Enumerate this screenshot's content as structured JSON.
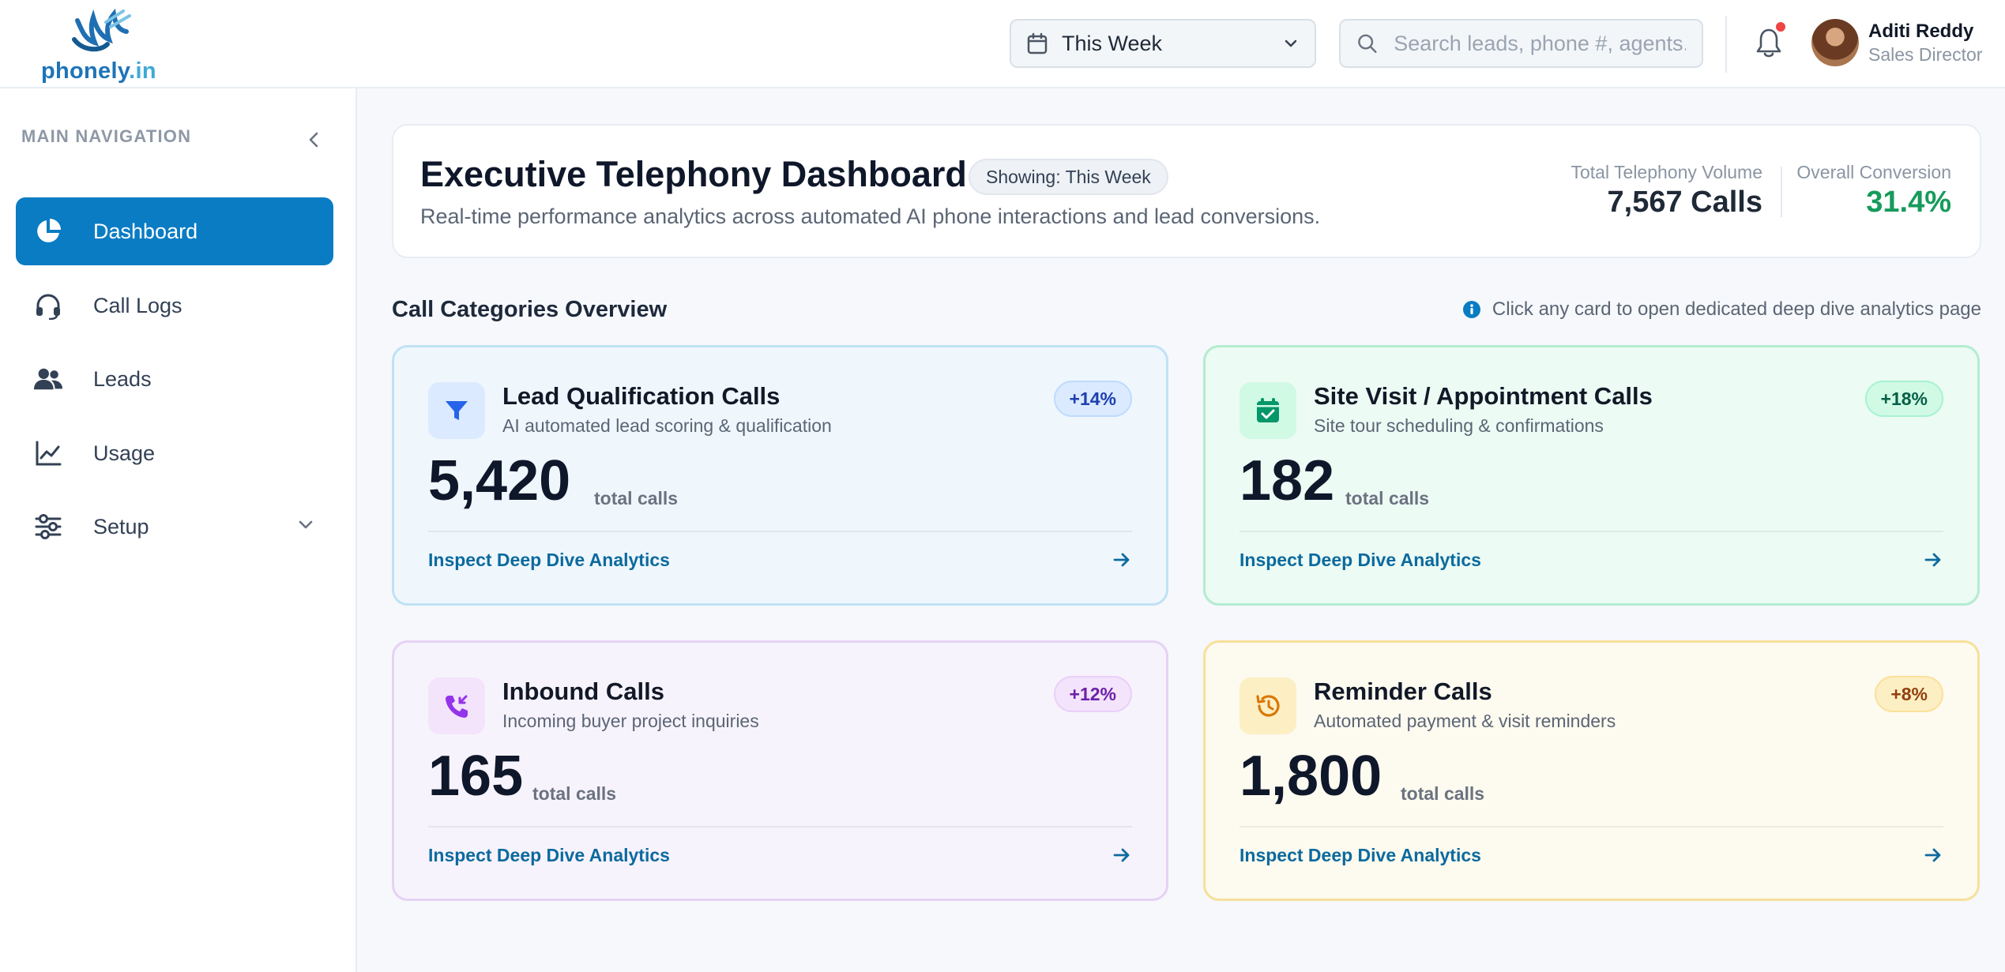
{
  "brand": {
    "logo_text_a": "phonely",
    "logo_text_b": ".in"
  },
  "header": {
    "period_select": {
      "value": "This Week"
    },
    "search": {
      "placeholder": "Search leads, phone #, agents..."
    },
    "user": {
      "name": "Aditi Reddy",
      "role": "Sales Director"
    }
  },
  "sidebar": {
    "heading": "MAIN NAVIGATION",
    "items": [
      {
        "label": "Dashboard",
        "icon": "pie-chart-icon",
        "active": true
      },
      {
        "label": "Call Logs",
        "icon": "headset-icon"
      },
      {
        "label": "Leads",
        "icon": "users-icon"
      },
      {
        "label": "Usage",
        "icon": "line-chart-icon"
      },
      {
        "label": "Setup",
        "icon": "sliders-icon",
        "expandable": true
      }
    ]
  },
  "page": {
    "title": "Executive Telephony Dashboard",
    "showing_badge": "Showing: This Week",
    "subtitle": "Real-time performance analytics across automated AI phone interactions and lead conversions.",
    "stats": {
      "volume_label": "Total Telephony Volume",
      "volume_value": "7,567 Calls",
      "conversion_label": "Overall Conversion",
      "conversion_value": "31.4%"
    }
  },
  "section": {
    "title": "Call Categories Overview",
    "hint": "Click any card to open dedicated deep dive analytics page"
  },
  "cards": [
    {
      "title": "Lead Qualification Calls",
      "description": "AI automated lead scoring & qualification",
      "badge": "+14%",
      "value": "5,420",
      "unit": "total calls",
      "link": "Inspect Deep Dive Analytics",
      "icon": "filter-icon",
      "accent": "#2563eb"
    },
    {
      "title": "Site Visit / Appointment Calls",
      "description": "Site tour scheduling & confirmations",
      "badge": "+18%",
      "value": "182",
      "unit": "total calls",
      "link": "Inspect Deep Dive Analytics",
      "icon": "calendar-check-icon",
      "accent": "#059669"
    },
    {
      "title": "Inbound Calls",
      "description": "Incoming buyer project inquiries",
      "badge": "+12%",
      "value": "165",
      "unit": "total calls",
      "link": "Inspect Deep Dive Analytics",
      "icon": "phone-incoming-icon",
      "accent": "#9333ea"
    },
    {
      "title": "Reminder Calls",
      "description": "Automated payment & visit reminders",
      "badge": "+8%",
      "value": "1,800",
      "unit": "total calls",
      "link": "Inspect Deep Dive Analytics",
      "icon": "history-icon",
      "accent": "#d97706"
    }
  ]
}
